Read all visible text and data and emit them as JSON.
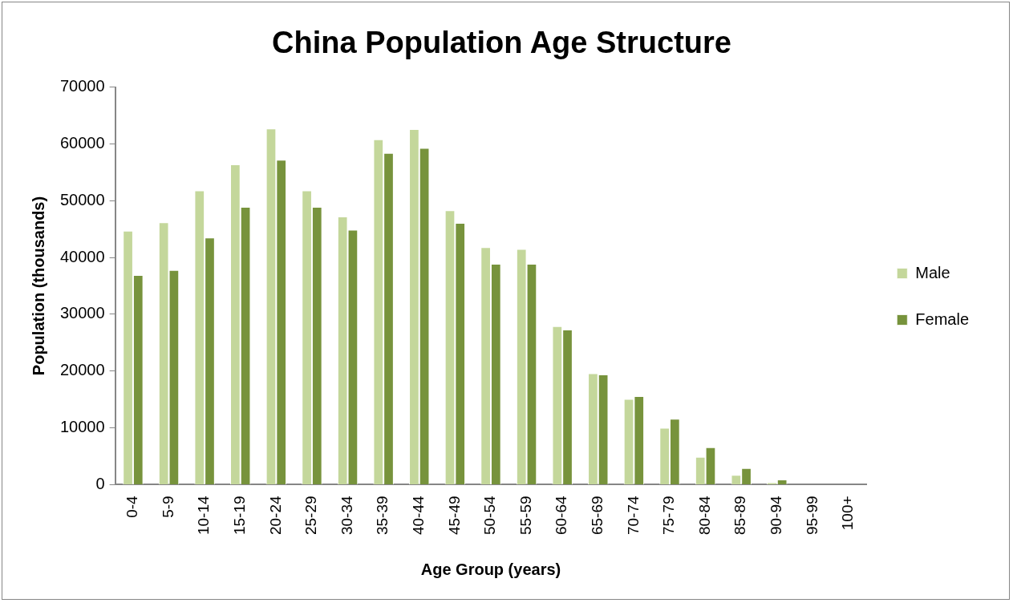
{
  "chart_data": {
    "type": "bar",
    "title": "China Population Age Structure",
    "xlabel": "Age Group (years)",
    "ylabel": "Population (thousands)",
    "categories": [
      "0-4",
      "5-9",
      "10-14",
      "15-19",
      "20-24",
      "25-29",
      "30-34",
      "35-39",
      "40-44",
      "45-49",
      "50-54",
      "55-59",
      "60-64",
      "65-69",
      "70-74",
      "75-79",
      "80-84",
      "85-89",
      "90-94",
      "95-99",
      "100+"
    ],
    "series": [
      {
        "name": "Male",
        "color": "#c4d79b",
        "values": [
          44700,
          46200,
          51800,
          56400,
          62700,
          51800,
          47200,
          60800,
          62600,
          48300,
          41800,
          41500,
          27900,
          19600,
          15100,
          10000,
          4900,
          1700,
          400,
          null,
          0
        ]
      },
      {
        "name": "Female",
        "color": "#77933c",
        "values": [
          36900,
          37800,
          43500,
          48900,
          57200,
          48900,
          44900,
          58400,
          59300,
          46100,
          38900,
          38900,
          27300,
          19400,
          15600,
          11600,
          6600,
          2900,
          900,
          null,
          0
        ]
      }
    ],
    "ylim": [
      0,
      70000
    ],
    "yticks": [
      0,
      10000,
      20000,
      30000,
      40000,
      50000,
      60000,
      70000
    ],
    "grid": false,
    "legend": "right"
  }
}
